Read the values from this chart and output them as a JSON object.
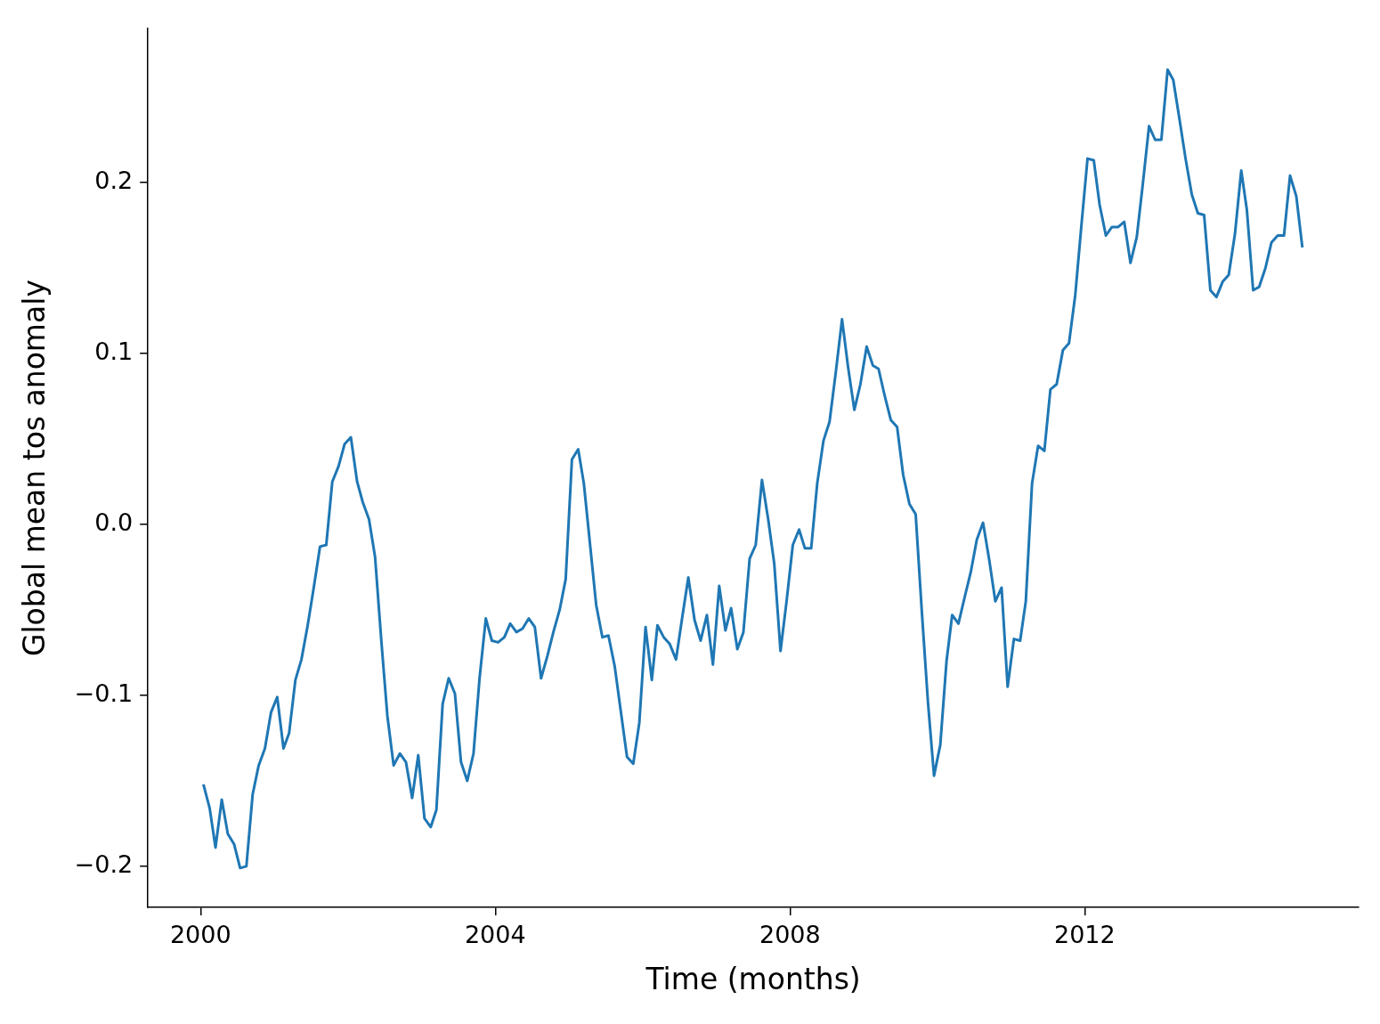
{
  "chart_data": {
    "type": "line",
    "xlabel": "Time (months)",
    "ylabel": "Global mean tos anomaly",
    "x": [
      "2000-01",
      "2000-02",
      "2000-03",
      "2000-04",
      "2000-05",
      "2000-06",
      "2000-07",
      "2000-08",
      "2000-09",
      "2000-10",
      "2000-11",
      "2000-12",
      "2001-01",
      "2001-02",
      "2001-03",
      "2001-04",
      "2001-05",
      "2001-06",
      "2001-07",
      "2001-08",
      "2001-09",
      "2001-10",
      "2001-11",
      "2001-12",
      "2002-01",
      "2002-02",
      "2002-03",
      "2002-04",
      "2002-05",
      "2002-06",
      "2002-07",
      "2002-08",
      "2002-09",
      "2002-10",
      "2002-11",
      "2002-12",
      "2003-01",
      "2003-02",
      "2003-03",
      "2003-04",
      "2003-05",
      "2003-06",
      "2003-07",
      "2003-08",
      "2003-09",
      "2003-10",
      "2003-11",
      "2003-12",
      "2004-01",
      "2004-02",
      "2004-03",
      "2004-04",
      "2004-05",
      "2004-06",
      "2004-07",
      "2004-08",
      "2004-09",
      "2004-10",
      "2004-11",
      "2004-12",
      "2005-01",
      "2005-02",
      "2005-03",
      "2005-04",
      "2005-05",
      "2005-06",
      "2005-07",
      "2005-08",
      "2005-09",
      "2005-10",
      "2005-11",
      "2005-12",
      "2006-01",
      "2006-02",
      "2006-03",
      "2006-04",
      "2006-05",
      "2006-06",
      "2006-07",
      "2006-08",
      "2006-09",
      "2006-10",
      "2006-11",
      "2006-12",
      "2007-01",
      "2007-02",
      "2007-03",
      "2007-04",
      "2007-05",
      "2007-06",
      "2007-07",
      "2007-08",
      "2007-09",
      "2007-10",
      "2007-11",
      "2007-12",
      "2008-01",
      "2008-02",
      "2008-03",
      "2008-04",
      "2008-05",
      "2008-06",
      "2008-07",
      "2008-08",
      "2008-09",
      "2008-10",
      "2008-11",
      "2008-12",
      "2009-01",
      "2009-02",
      "2009-03",
      "2009-04",
      "2009-05",
      "2009-06",
      "2009-07",
      "2009-08",
      "2009-09",
      "2009-10",
      "2009-11",
      "2009-12",
      "2010-01",
      "2010-02",
      "2010-03",
      "2010-04",
      "2010-05",
      "2010-06",
      "2010-07",
      "2010-08",
      "2010-09",
      "2010-10",
      "2010-11",
      "2010-12",
      "2011-01",
      "2011-02",
      "2011-03",
      "2011-04",
      "2011-05",
      "2011-06",
      "2011-07",
      "2011-08",
      "2011-09",
      "2011-10",
      "2011-11",
      "2011-12",
      "2012-01",
      "2012-02",
      "2012-03",
      "2012-04",
      "2012-05",
      "2012-06",
      "2012-07",
      "2012-08",
      "2012-09",
      "2012-10",
      "2012-11",
      "2012-12",
      "2013-01",
      "2013-02",
      "2013-03",
      "2013-04",
      "2013-05",
      "2013-06",
      "2013-07",
      "2013-08",
      "2013-09",
      "2013-10",
      "2013-11",
      "2013-12",
      "2014-01",
      "2014-02",
      "2014-03",
      "2014-04",
      "2014-05",
      "2014-06",
      "2014-07",
      "2014-08",
      "2014-09",
      "2014-10",
      "2014-11",
      "2014-12"
    ],
    "series": [
      {
        "color": "#1f77b4",
        "values": [
          -0.152,
          -0.166,
          -0.189,
          -0.161,
          -0.181,
          -0.187,
          -0.201,
          -0.2,
          -0.158,
          -0.141,
          -0.131,
          -0.11,
          -0.101,
          -0.131,
          -0.122,
          -0.091,
          -0.079,
          -0.059,
          -0.037,
          -0.013,
          -0.012,
          0.025,
          0.034,
          0.047,
          0.051,
          0.025,
          0.013,
          0.003,
          -0.019,
          -0.068,
          -0.112,
          -0.141,
          -0.134,
          -0.139,
          -0.16,
          -0.135,
          -0.172,
          -0.177,
          -0.167,
          -0.105,
          -0.09,
          -0.099,
          -0.139,
          -0.15,
          -0.134,
          -0.09,
          -0.055,
          -0.068,
          -0.069,
          -0.066,
          -0.058,
          -0.063,
          -0.061,
          -0.055,
          -0.06,
          -0.09,
          -0.077,
          -0.063,
          -0.05,
          -0.032,
          0.038,
          0.044,
          0.024,
          -0.012,
          -0.047,
          -0.066,
          -0.065,
          -0.083,
          -0.11,
          -0.136,
          -0.14,
          -0.116,
          -0.06,
          -0.091,
          -0.059,
          -0.066,
          -0.07,
          -0.079,
          -0.055,
          -0.031,
          -0.056,
          -0.068,
          -0.053,
          -0.082,
          -0.036,
          -0.062,
          -0.049,
          -0.073,
          -0.063,
          -0.02,
          -0.012,
          0.026,
          0.003,
          -0.023,
          -0.074,
          -0.045,
          -0.012,
          -0.003,
          -0.014,
          -0.014,
          0.024,
          0.049,
          0.06,
          0.089,
          0.12,
          0.092,
          0.067,
          0.082,
          0.104,
          0.093,
          0.091,
          0.075,
          0.061,
          0.057,
          0.029,
          0.012,
          0.006,
          -0.05,
          -0.104,
          -0.147,
          -0.129,
          -0.08,
          -0.053,
          -0.058,
          -0.043,
          -0.028,
          -0.009,
          0.001,
          -0.021,
          -0.045,
          -0.037,
          -0.095,
          -0.067,
          -0.068,
          -0.045,
          0.024,
          0.046,
          0.043,
          0.079,
          0.082,
          0.102,
          0.106,
          0.134,
          0.174,
          0.214,
          0.213,
          0.187,
          0.169,
          0.174,
          0.174,
          0.177,
          0.153,
          0.168,
          0.199,
          0.233,
          0.225,
          0.225,
          0.266,
          0.26,
          0.237,
          0.214,
          0.193,
          0.182,
          0.181,
          0.137,
          0.133,
          0.142,
          0.146,
          0.17,
          0.207,
          0.184,
          0.137,
          0.139,
          0.15,
          0.165,
          0.169,
          0.169,
          0.204,
          0.192,
          0.162
        ]
      }
    ],
    "xlim": [
      "1999-04-15",
      "2015-09-20"
    ],
    "xticks": [
      {
        "value": "2000-01-01",
        "label": "2000"
      },
      {
        "value": "2004-01-01",
        "label": "2004"
      },
      {
        "value": "2008-01-01",
        "label": "2008"
      },
      {
        "value": "2012-01-01",
        "label": "2012"
      }
    ],
    "ylim": [
      -0.224,
      0.29
    ],
    "yticks": [
      {
        "value": -0.2,
        "label": "−0.2"
      },
      {
        "value": -0.1,
        "label": "−0.1"
      },
      {
        "value": 0,
        "label": "0.0"
      },
      {
        "value": 0.1,
        "label": "0.1"
      },
      {
        "value": 0.2,
        "label": "0.2"
      }
    ],
    "marker": "none",
    "line_style": "solid",
    "legend": false,
    "grid": false
  }
}
